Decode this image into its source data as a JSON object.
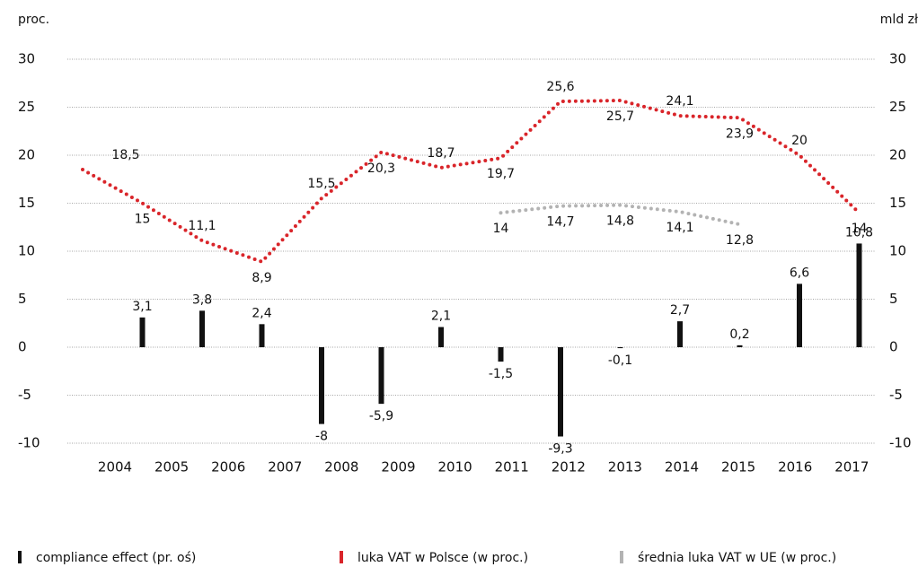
{
  "chart_data": {
    "type": "bar_line",
    "y_label": "proc.",
    "y2_label": "mld zł",
    "categories": [
      "2004",
      "2005",
      "2006",
      "2007",
      "2008",
      "2009",
      "2010",
      "2011",
      "2012",
      "2013",
      "2014",
      "2015",
      "2016",
      "2017"
    ],
    "ylim": [
      -10,
      30
    ],
    "yticks": [
      -10,
      -5,
      0,
      5,
      10,
      15,
      20,
      25,
      30
    ],
    "y2lim": [
      -10,
      30
    ],
    "y2ticks": [
      -10,
      -5,
      0,
      5,
      10,
      15,
      20,
      25,
      30
    ],
    "grid": true,
    "series": [
      {
        "name": "compliance effect (pr. oś)",
        "type": "bar",
        "axis": "y2",
        "color": "#111111",
        "values": [
          null,
          3.1,
          3.8,
          2.4,
          -8,
          -5.9,
          2.1,
          -1.5,
          -9.3,
          -0.1,
          2.7,
          0.2,
          6.6,
          10.8
        ],
        "value_labels": [
          null,
          "3,1",
          "3,8",
          "2,4",
          "-8",
          "-5,9",
          "2,1",
          "-1,5",
          "-9,3",
          "-0,1",
          "2,7",
          "0,2",
          "6,6",
          "10,8"
        ]
      },
      {
        "name": "luka VAT w Polsce (w proc.)",
        "type": "line",
        "color": "#d9252a",
        "values": [
          18.5,
          15,
          11.1,
          8.9,
          15.5,
          20.3,
          18.7,
          19.7,
          25.6,
          25.7,
          24.1,
          23.9,
          20,
          14
        ],
        "value_labels": [
          "18,5",
          "15",
          "11,1",
          "8,9",
          "15,5",
          "20,3",
          "18,7",
          "19,7",
          "25,6",
          "25,7",
          "24,1",
          "23,9",
          "20",
          "14"
        ]
      },
      {
        "name": "średnia luka VAT w UE (w proc.)",
        "type": "line",
        "color": "#b3b3b3",
        "values": [
          null,
          null,
          null,
          null,
          null,
          null,
          null,
          14,
          14.7,
          14.8,
          14.1,
          12.8,
          null,
          null
        ],
        "value_labels": [
          null,
          null,
          null,
          null,
          null,
          null,
          null,
          "14",
          "14,7",
          "14,8",
          "14,1",
          "12,8",
          null,
          null
        ]
      }
    ]
  }
}
